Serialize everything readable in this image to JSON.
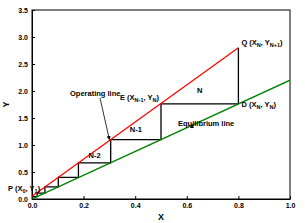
{
  "chart_data": {
    "type": "line",
    "x_label": "X",
    "y_label": "Y",
    "xlim": [
      0,
      1.0
    ],
    "ylim": [
      0,
      3.5
    ],
    "xticks": [
      {
        "value": 0,
        "label": "0.0"
      },
      0.2,
      0.4,
      0.6,
      0.8,
      {
        "value": 1,
        "label": "1.0"
      }
    ],
    "yticks": [
      {
        "value": 0,
        "label": "0.0"
      },
      0.5,
      {
        "value": 1,
        "label": "1.0"
      },
      1.5,
      {
        "value": 2,
        "label": "2.0"
      },
      2.5,
      {
        "value": 3,
        "label": "3.0"
      },
      3.5
    ],
    "series": [
      {
        "name": "Operating line",
        "color": "#ff0000",
        "x": [
          0,
          0.8
        ],
        "values": [
          0.05,
          2.8
        ]
      },
      {
        "name": "Equilibrium line",
        "color": "#008000",
        "x": [
          0,
          1.0
        ],
        "values": [
          0,
          2.2
        ]
      }
    ],
    "staircase": {
      "color": "#000000",
      "x": [
        0.8,
        0.8,
        0.5,
        0.5,
        0.305,
        0.305,
        0.18,
        0.18,
        0.102,
        0.102,
        0.05,
        0.05,
        0.02,
        0.02,
        0.0
      ],
      "values": [
        2.8,
        1.76,
        1.76,
        1.1,
        1.1,
        0.67,
        0.67,
        0.4,
        0.4,
        0.224,
        0.224,
        0.11,
        0.11,
        0.044,
        0.044
      ]
    },
    "step_labels": [
      "N",
      "N-1",
      "N-2"
    ],
    "points": [
      {
        "label": [
          "Q (X",
          "N",
          ", Y",
          "N+1",
          ")"
        ],
        "x": 0.8,
        "y": 2.8
      },
      {
        "label": [
          "D (X",
          "N",
          ", Y",
          "N",
          ")"
        ],
        "x": 0.8,
        "y": 1.76
      },
      {
        "label": [
          "E (X",
          "N-1",
          ", Y",
          "N",
          ")"
        ],
        "x": 0.5,
        "y": 1.76
      },
      {
        "label": [
          "P (X",
          "0",
          ", Y",
          "1",
          ")"
        ],
        "x": 0.0,
        "y": 0.05
      }
    ]
  }
}
